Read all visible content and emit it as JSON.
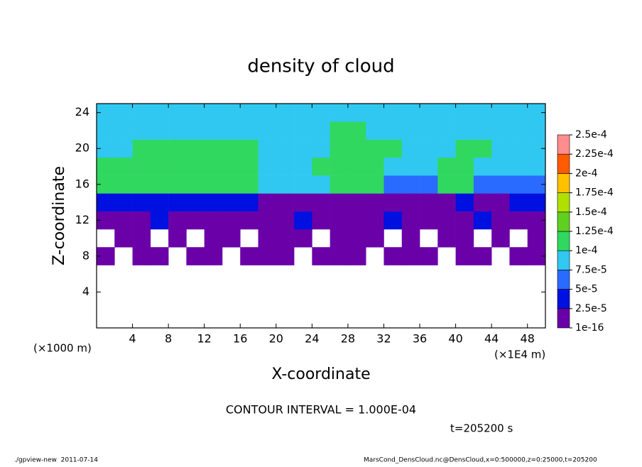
{
  "chart_data": {
    "type": "heatmap",
    "title": "density of cloud",
    "xlabel": "X-coordinate",
    "ylabel": "Z-coordinate",
    "x_unit_label": "(×1000 m)",
    "x_unit_label_right": "(×1E4 m)",
    "contour_note": "CONTOUR INTERVAL = 1.000E-04",
    "time_label": "t=205200 s",
    "footer_left": "./gpview-new  2011-07-14",
    "footer_right": "MarsCond_DensCloud.nc@DensCloud,x=0:500000,z=0:25000,t=205200",
    "xlim": [
      0,
      50
    ],
    "ylim": [
      0,
      25
    ],
    "xticks": [
      4,
      8,
      12,
      16,
      20,
      24,
      28,
      32,
      36,
      40,
      44,
      48
    ],
    "yticks": [
      4,
      8,
      12,
      16,
      20,
      24
    ],
    "x": [
      1,
      3,
      5,
      7,
      9,
      11,
      13,
      15,
      17,
      19,
      21,
      23,
      25,
      27,
      29,
      31,
      33,
      35,
      37,
      39,
      41,
      43,
      45,
      47,
      49
    ],
    "y": [
      8,
      10,
      12,
      14,
      16,
      18,
      20,
      22,
      24
    ],
    "values": [
      [
        1e-05,
        0,
        1e-05,
        1e-05,
        0,
        1e-05,
        1e-05,
        0,
        1e-05,
        1e-05,
        1e-05,
        0,
        1e-05,
        1e-05,
        1e-05,
        0,
        1e-05,
        1e-05,
        1e-05,
        0,
        1e-05,
        1e-05,
        0,
        1e-05,
        1e-05
      ],
      [
        0,
        1e-05,
        1e-05,
        0,
        1e-05,
        0,
        1e-05,
        1e-05,
        0,
        1e-05,
        1e-05,
        1e-05,
        0,
        1e-05,
        1e-05,
        1e-05,
        0,
        1e-05,
        0,
        1e-05,
        1e-05,
        0,
        1e-05,
        0,
        1e-05
      ],
      [
        2e-05,
        1.5e-05,
        1.5e-05,
        3e-05,
        1.5e-05,
        1.5e-05,
        1e-05,
        1.5e-05,
        1.5e-05,
        1e-05,
        1.5e-05,
        3e-05,
        1.5e-05,
        1e-05,
        1.5e-05,
        1.5e-05,
        3e-05,
        1.5e-05,
        1.5e-05,
        1e-05,
        1.5e-05,
        3e-05,
        1.5e-05,
        1.5e-05,
        2e-05
      ],
      [
        4e-05,
        4e-05,
        3e-05,
        4e-05,
        3e-05,
        3e-05,
        4e-05,
        3e-05,
        3e-05,
        2e-05,
        1e-05,
        1e-05,
        1e-05,
        1e-05,
        1.5e-05,
        1e-05,
        1.5e-05,
        1e-05,
        1e-05,
        1.5e-05,
        3e-05,
        1e-05,
        1e-05,
        3e-05,
        4e-05
      ],
      [
        0.000102,
        0.000102,
        0.000102,
        0.000102,
        0.000102,
        0.000102,
        0.000102,
        0.000102,
        0.000102,
        8e-05,
        8e-05,
        8e-05,
        8e-05,
        0.0001,
        0.0001,
        0.0001,
        5.5e-05,
        5.5e-05,
        5.5e-05,
        0.000105,
        0.000105,
        6e-05,
        6e-05,
        6e-05,
        6e-05
      ],
      [
        0.000105,
        0.000105,
        0.000105,
        0.000105,
        0.000105,
        0.000105,
        0.000105,
        0.000105,
        0.000105,
        9e-05,
        9e-05,
        9e-05,
        0.00011,
        0.00011,
        0.00011,
        0.00011,
        8.5e-05,
        8.5e-05,
        8.5e-05,
        0.00011,
        0.00011,
        8e-05,
        8e-05,
        8e-05,
        8e-05
      ],
      [
        9.5e-05,
        9.5e-05,
        0.0001,
        0.0001,
        0.0001,
        0.00011,
        0.00011,
        0.00011,
        0.00011,
        9e-05,
        9.5e-05,
        9.5e-05,
        9.5e-05,
        0.00011,
        0.00011,
        0.00011,
        0.000105,
        8.5e-05,
        8.5e-05,
        8.5e-05,
        0.00011,
        0.00011,
        8.5e-05,
        8.5e-05,
        8.5e-05
      ],
      [
        9e-05,
        9e-05,
        9e-05,
        9e-05,
        9e-05,
        9e-05,
        9e-05,
        9e-05,
        9e-05,
        9e-05,
        9e-05,
        9e-05,
        9e-05,
        0.000105,
        0.000105,
        9e-05,
        9e-05,
        9e-05,
        9e-05,
        9e-05,
        9.5e-05,
        9e-05,
        9e-05,
        9e-05,
        9e-05
      ],
      [
        8.5e-05,
        8.5e-05,
        8.5e-05,
        8.5e-05,
        9e-05,
        9e-05,
        8.5e-05,
        8.5e-05,
        8.5e-05,
        8.5e-05,
        8.5e-05,
        8.5e-05,
        8.5e-05,
        9e-05,
        9e-05,
        8.5e-05,
        8.5e-05,
        8.5e-05,
        8.5e-05,
        8.5e-05,
        9e-05,
        8.5e-05,
        8.5e-05,
        8.5e-05,
        8.5e-05
      ]
    ],
    "levels": [
      {
        "value": 1e-16,
        "label": "1e-16"
      },
      {
        "value": 2.5e-05,
        "label": "2.5e-5"
      },
      {
        "value": 5e-05,
        "label": "5e-5"
      },
      {
        "value": 7.5e-05,
        "label": "7.5e-5"
      },
      {
        "value": 0.0001,
        "label": "1e-4"
      },
      {
        "value": 0.000125,
        "label": "1.25e-4"
      },
      {
        "value": 0.00015,
        "label": "1.5e-4"
      },
      {
        "value": 0.000175,
        "label": "1.75e-4"
      },
      {
        "value": 0.0002,
        "label": "2e-4"
      },
      {
        "value": 0.000225,
        "label": "2.25e-4"
      },
      {
        "value": 0.00025,
        "label": "2.5e-4"
      }
    ],
    "colors": [
      "#6a00a8",
      "#0010e0",
      "#2a6bff",
      "#30c8f0",
      "#30d860",
      "#60d020",
      "#b0e000",
      "#ffc000",
      "#ff5a00",
      "#ff8c8c"
    ]
  }
}
